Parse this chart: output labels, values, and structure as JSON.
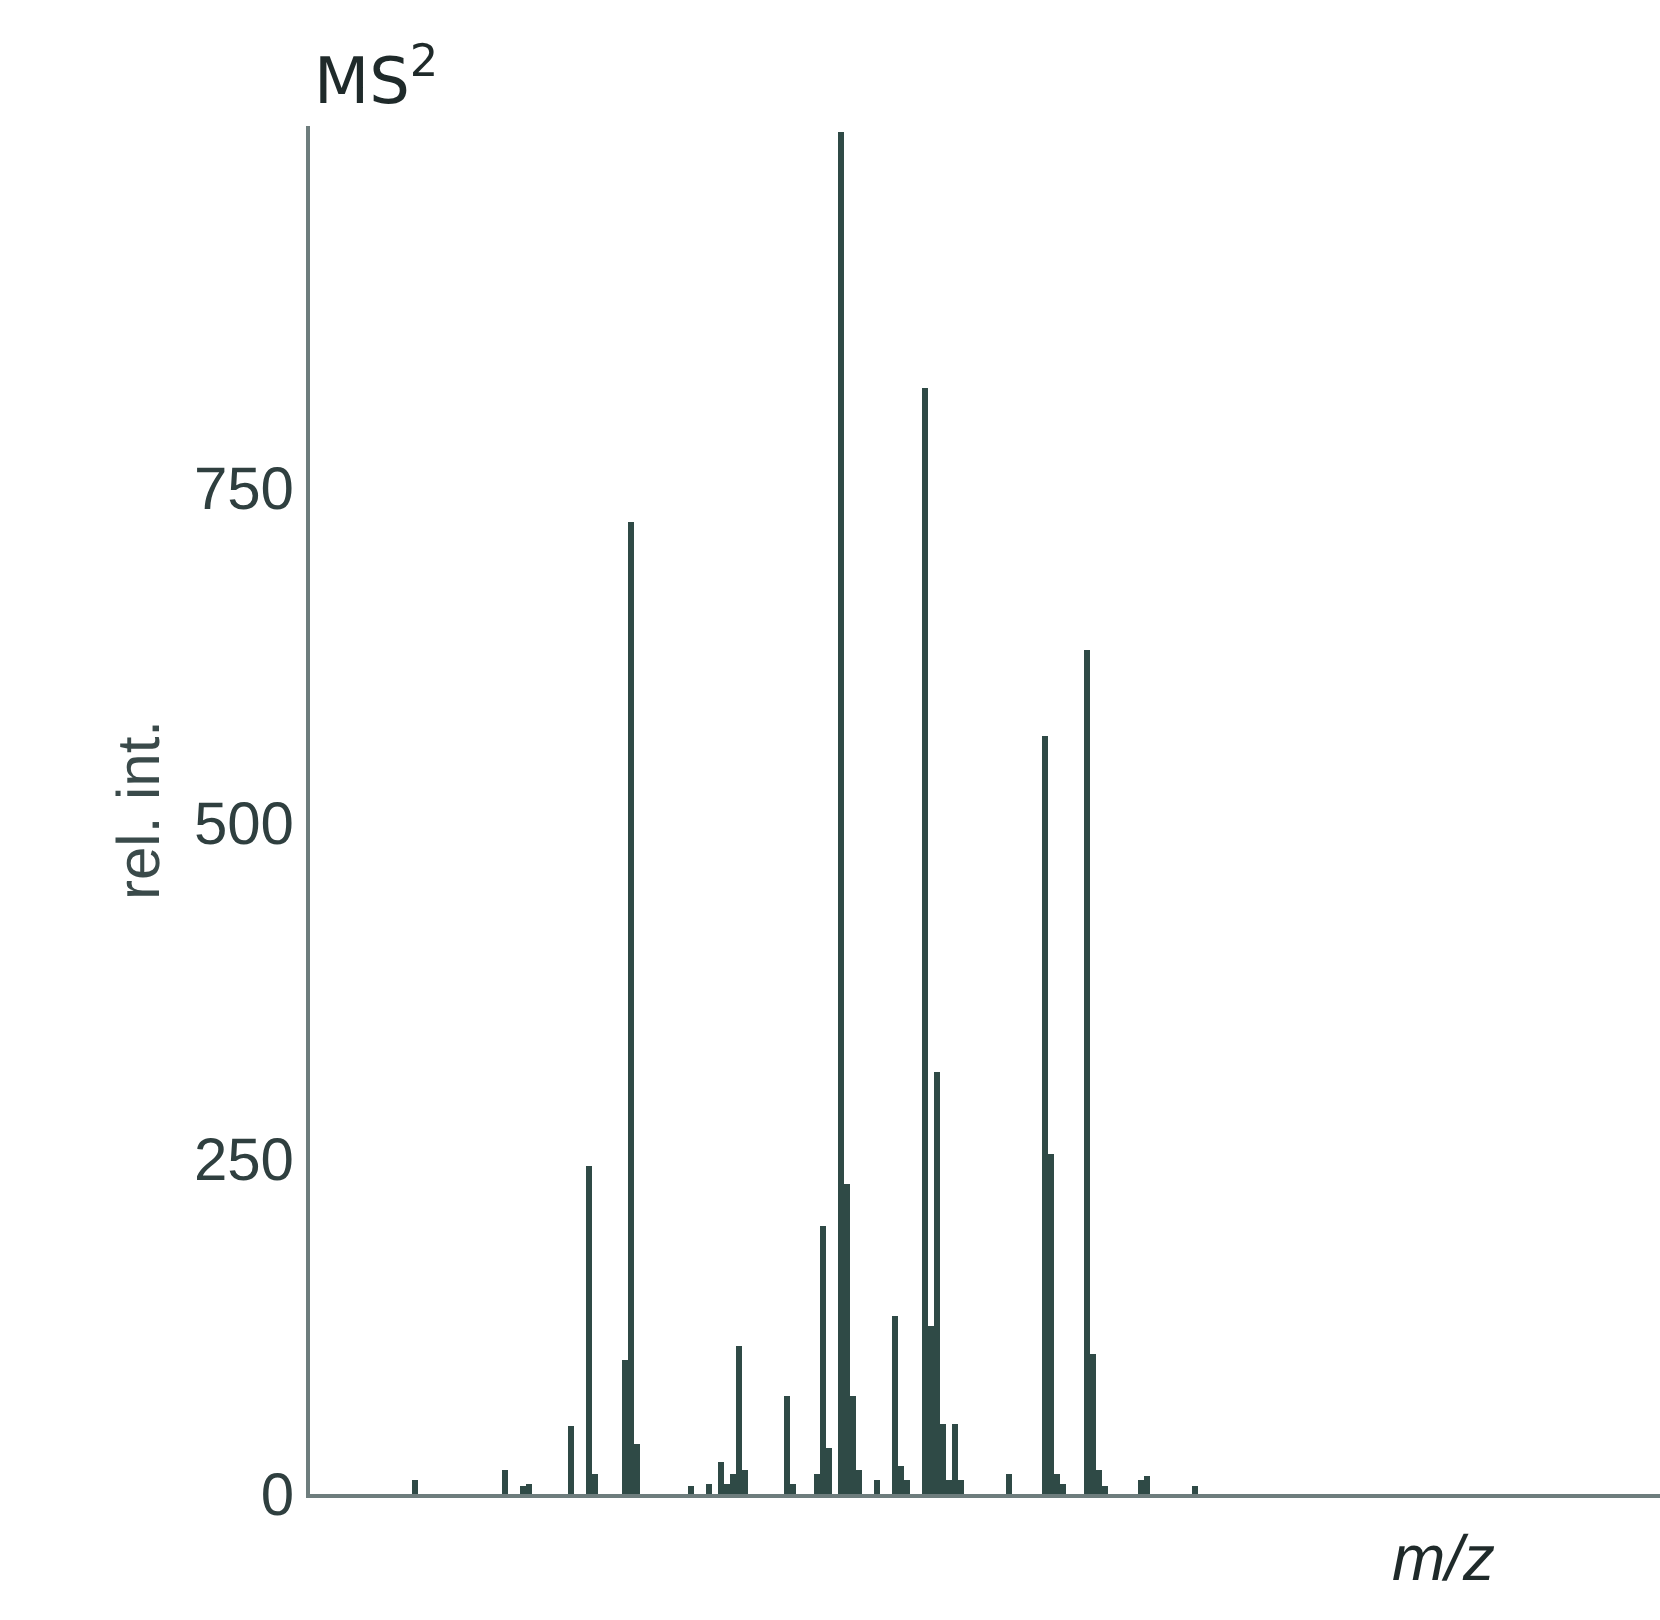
{
  "chart_data": {
    "type": "bar",
    "title": "MS$^{2}$",
    "xlabel": "m/z",
    "ylabel": "rel. int.",
    "categories": [
      null,
      null,
      null,
      null,
      null,
      null,
      null,
      null,
      null,
      null,
      null,
      null,
      null,
      null,
      null,
      null,
      null,
      null,
      null,
      null,
      null,
      null,
      null,
      null,
      null,
      null,
      null,
      null,
      null,
      null,
      null,
      null,
      null,
      null,
      null,
      null,
      null,
      null,
      null,
      null,
      null,
      null,
      null,
      null,
      null,
      null,
      null,
      null,
      null,
      null,
      null,
      null,
      null,
      null,
      null,
      null,
      null,
      null,
      null,
      null,
      null,
      null,
      null,
      null,
      null,
      null,
      null,
      null,
      null,
      null,
      null,
      null,
      null,
      null,
      null,
      null,
      null,
      null,
      null,
      null,
      null,
      null,
      null,
      null,
      null,
      null,
      null,
      null,
      null,
      null,
      null,
      null,
      null,
      null,
      null,
      null,
      null,
      null,
      null,
      null,
      null,
      null,
      null,
      null,
      null,
      null,
      null,
      null,
      null,
      null,
      null,
      null,
      null,
      null,
      null,
      null,
      null,
      null,
      null,
      null,
      null,
      null,
      null,
      null,
      null,
      null,
      null,
      null,
      null,
      null,
      null,
      null,
      null,
      null,
      null,
      null,
      null,
      null,
      null,
      null,
      null,
      null,
      null,
      null,
      null,
      null,
      null,
      null,
      null,
      null,
      null,
      null,
      null,
      null,
      null,
      null,
      null,
      null,
      null,
      null,
      null,
      null,
      null,
      null,
      null,
      null,
      null,
      null,
      null,
      null,
      null,
      null,
      null,
      null,
      null,
      null,
      null,
      null,
      null,
      null,
      null,
      null,
      null,
      null,
      null,
      null,
      null,
      null,
      null,
      null,
      null,
      null,
      null,
      null,
      null,
      null,
      null,
      null,
      null,
      null,
      null,
      null,
      null,
      null,
      null,
      null,
      null,
      null,
      null,
      null,
      null,
      null,
      null,
      null,
      null,
      null,
      null,
      null,
      null,
      null,
      null,
      null,
      null,
      null,
      null
    ],
    "values": [
      null,
      null,
      null,
      null,
      null,
      null,
      null,
      null,
      null,
      null,
      null,
      null,
      null,
      null,
      null,
      null,
      null,
      10,
      null,
      null,
      null,
      null,
      null,
      null,
      null,
      null,
      null,
      null,
      null,
      null,
      null,
      null,
      18,
      null,
      null,
      6,
      7,
      null,
      null,
      null,
      null,
      null,
      null,
      50,
      null,
      null,
      245,
      15,
      null,
      null,
      null,
      null,
      100,
      725,
      38,
      null,
      null,
      null,
      null,
      null,
      null,
      null,
      null,
      6,
      null,
      null,
      7,
      null,
      24,
      7,
      15,
      110,
      18,
      null,
      null,
      null,
      null,
      null,
      null,
      73,
      7,
      null,
      null,
      null,
      15,
      200,
      34,
      null,
      1015,
      231,
      73,
      18,
      null,
      null,
      10,
      null,
      null,
      132,
      21,
      10,
      null,
      null,
      825,
      126,
      315,
      52,
      10,
      52,
      10,
      null,
      null,
      null,
      null,
      null,
      null,
      null,
      15,
      null,
      null,
      null,
      null,
      null,
      565,
      254,
      15,
      7,
      null,
      null,
      null,
      630,
      104,
      18,
      6,
      null,
      null,
      null,
      null,
      null,
      10,
      13,
      null,
      null,
      null,
      null,
      null,
      null,
      null,
      6,
      null,
      null,
      null,
      null,
      null,
      null,
      null,
      null,
      null,
      null,
      null,
      null,
      null,
      null,
      null,
      null,
      null,
      null,
      null,
      null,
      null,
      null,
      null,
      null,
      null,
      null,
      null,
      null,
      null,
      null,
      null,
      null,
      null,
      null,
      null,
      null,
      null,
      null,
      null,
      null,
      null,
      null,
      null,
      null,
      null,
      null,
      null,
      null,
      null,
      null,
      null,
      null,
      null,
      null,
      null,
      null,
      null,
      null,
      null,
      null,
      null,
      null,
      null,
      null,
      null,
      null,
      null,
      null,
      null,
      null,
      null,
      null,
      null,
      null,
      null,
      null,
      null
    ],
    "color": "#2f4a46",
    "ylim": [
      0,
      1020
    ],
    "yticks": [
      0,
      250,
      500,
      750
    ],
    "tick_labels": "y"
  }
}
